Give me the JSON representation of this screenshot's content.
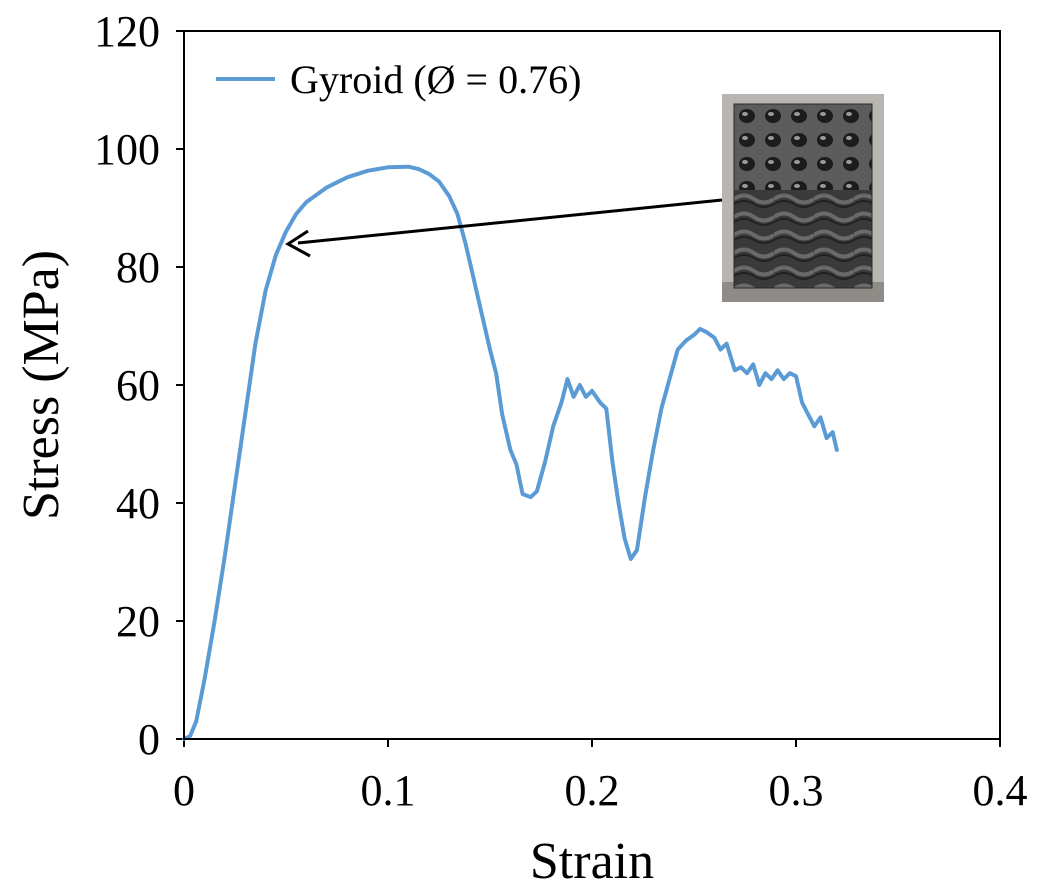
{
  "chart_data": {
    "type": "line",
    "xlabel": "Strain",
    "ylabel": "Stress (MPa)",
    "xlim": [
      0,
      0.4
    ],
    "ylim": [
      0,
      120
    ],
    "xticks": [
      "0",
      "0.1",
      "0.2",
      "0.3",
      "0.4"
    ],
    "yticks": [
      "0",
      "20",
      "40",
      "60",
      "80",
      "100",
      "120"
    ],
    "grid": false,
    "legend_position": "top-left",
    "inset": "photo of gyroid lattice cube specimen, with arrow pointing to curve",
    "series": [
      {
        "name": "Gyroid (Ø = 0.76)",
        "color": "#5b9bd5",
        "points": [
          [
            0.0,
            0
          ],
          [
            0.003,
            0.5
          ],
          [
            0.006,
            3
          ],
          [
            0.01,
            10
          ],
          [
            0.015,
            20
          ],
          [
            0.02,
            31
          ],
          [
            0.025,
            43
          ],
          [
            0.03,
            55
          ],
          [
            0.035,
            67
          ],
          [
            0.04,
            76
          ],
          [
            0.045,
            82
          ],
          [
            0.05,
            86
          ],
          [
            0.055,
            89
          ],
          [
            0.06,
            91
          ],
          [
            0.07,
            93.5
          ],
          [
            0.08,
            95.2
          ],
          [
            0.09,
            96.3
          ],
          [
            0.1,
            96.9
          ],
          [
            0.11,
            97.0
          ],
          [
            0.115,
            96.6
          ],
          [
            0.12,
            95.8
          ],
          [
            0.125,
            94.5
          ],
          [
            0.13,
            92.0
          ],
          [
            0.134,
            89.0
          ],
          [
            0.138,
            84.0
          ],
          [
            0.142,
            78.0
          ],
          [
            0.146,
            72.0
          ],
          [
            0.15,
            66.0
          ],
          [
            0.153,
            62.0
          ],
          [
            0.156,
            55.0
          ],
          [
            0.16,
            49.0
          ],
          [
            0.163,
            46.5
          ],
          [
            0.166,
            41.5
          ],
          [
            0.17,
            41.0
          ],
          [
            0.173,
            42.0
          ],
          [
            0.177,
            47.0
          ],
          [
            0.181,
            53.0
          ],
          [
            0.185,
            57.0
          ],
          [
            0.188,
            61.0
          ],
          [
            0.191,
            58.0
          ],
          [
            0.194,
            60.0
          ],
          [
            0.197,
            58.0
          ],
          [
            0.2,
            59.0
          ],
          [
            0.204,
            57.0
          ],
          [
            0.207,
            56.0
          ],
          [
            0.21,
            47.0
          ],
          [
            0.213,
            40.0
          ],
          [
            0.216,
            34.0
          ],
          [
            0.219,
            30.5
          ],
          [
            0.222,
            32.0
          ],
          [
            0.226,
            41.0
          ],
          [
            0.23,
            49.0
          ],
          [
            0.234,
            56.0
          ],
          [
            0.238,
            61.0
          ],
          [
            0.242,
            66.0
          ],
          [
            0.246,
            67.5
          ],
          [
            0.25,
            68.5
          ],
          [
            0.253,
            69.5
          ],
          [
            0.256,
            69.0
          ],
          [
            0.26,
            68.0
          ],
          [
            0.263,
            66.0
          ],
          [
            0.266,
            67.0
          ],
          [
            0.27,
            62.5
          ],
          [
            0.273,
            63.0
          ],
          [
            0.276,
            62.0
          ],
          [
            0.279,
            63.5
          ],
          [
            0.282,
            60.0
          ],
          [
            0.285,
            62.0
          ],
          [
            0.288,
            61.0
          ],
          [
            0.291,
            62.5
          ],
          [
            0.294,
            61.0
          ],
          [
            0.297,
            62.0
          ],
          [
            0.3,
            61.5
          ],
          [
            0.303,
            57.0
          ],
          [
            0.306,
            55.0
          ],
          [
            0.309,
            53.0
          ],
          [
            0.312,
            54.5
          ],
          [
            0.315,
            51.0
          ],
          [
            0.318,
            52.0
          ],
          [
            0.32,
            49.0
          ]
        ]
      }
    ]
  }
}
